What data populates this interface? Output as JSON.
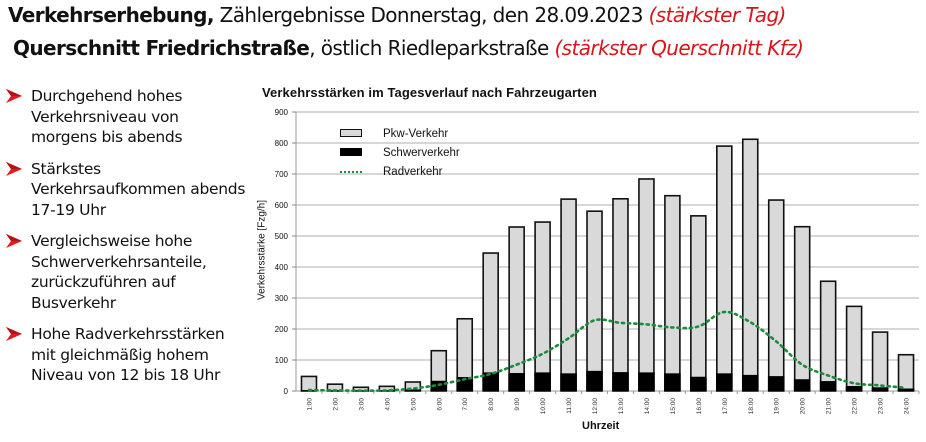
{
  "header": {
    "line1": {
      "bold": "Verkehrserhebung,",
      "normal": " Zählergebnisse Donnerstag, den 28.09.2023 ",
      "highlight": "(stärkster Tag)"
    },
    "line2": {
      "bold": "Querschnitt Friedrichstraße",
      "normal": ", östlich Riedleparkstraße ",
      "highlight": "(stärkster Querschnitt Kfz)"
    }
  },
  "bullets": [
    {
      "icon": "red-arrow-bullet",
      "text": "Durchgehend hohes Verkehrsniveau von morgens bis abends"
    },
    {
      "icon": "red-arrow-bullet",
      "text": "Stärkstes Verkehrsaufkommen abends 17-19 Uhr"
    },
    {
      "icon": "red-arrow-bullet",
      "text": "Vergleichsweise hohe Schwerverkehrsanteile, zurückzuführen auf Busverkehr"
    },
    {
      "icon": "red-arrow-bullet",
      "text": "Hohe Radverkehrsstärken mit gleichmäßig hohem Niveau von 12 bis 18 Uhr"
    }
  ],
  "colors": {
    "highlight_red": "#d9151b",
    "pkw_fill": "#d9d9d9",
    "schwer_fill": "#000000",
    "rad_line": "#1a8c3c",
    "grid": "#bfbfbf"
  },
  "chart_data": {
    "type": "bar",
    "stacked": true,
    "title": "Verkehrsstärken  im Tagesverlauf nach Fahrzeugarten",
    "xlabel": "Uhrzeit",
    "ylabel": "Verkehrsstärke [Fzg/h]",
    "ylim": [
      0,
      900
    ],
    "yticks": [
      0,
      100,
      200,
      300,
      400,
      500,
      600,
      700,
      800,
      900
    ],
    "grid": true,
    "legend_position": "upper-left-inside",
    "categories": [
      "1:00",
      "2:00",
      "3:00",
      "4:00",
      "5:00",
      "6:00",
      "7:00",
      "8:00",
      "9:00",
      "10:00",
      "11:00",
      "12:00",
      "13:00",
      "14:00",
      "15:00",
      "16:00",
      "17:00",
      "18:00",
      "19:00",
      "20:00",
      "21:00",
      "22:00",
      "23:00",
      "24:00"
    ],
    "series": [
      {
        "name": "Pkw-Verkehr",
        "kind": "bar-total-minus-heavy",
        "values": [
          44,
          20,
          11,
          13,
          24,
          97,
          188,
          385,
          471,
          485,
          562,
          515,
          559,
          624,
          573,
          519,
          733,
          760,
          568,
          492,
          322,
          257,
          178,
          109
        ]
      },
      {
        "name": "Schwerverkehr",
        "kind": "bar",
        "values": [
          3,
          2,
          1,
          2,
          5,
          33,
          45,
          60,
          58,
          60,
          57,
          65,
          61,
          60,
          57,
          46,
          57,
          52,
          48,
          38,
          32,
          16,
          12,
          8
        ]
      },
      {
        "name": "Radverkehr",
        "kind": "dotted-line",
        "values": [
          3,
          2,
          1,
          2,
          8,
          20,
          38,
          55,
          85,
          120,
          170,
          228,
          220,
          215,
          205,
          208,
          255,
          222,
          160,
          85,
          50,
          25,
          18,
          10
        ]
      }
    ],
    "totals": [
      47,
      22,
      12,
      15,
      29,
      130,
      233,
      445,
      529,
      545,
      619,
      580,
      620,
      684,
      630,
      565,
      790,
      812,
      616,
      530,
      354,
      273,
      190,
      117
    ]
  }
}
